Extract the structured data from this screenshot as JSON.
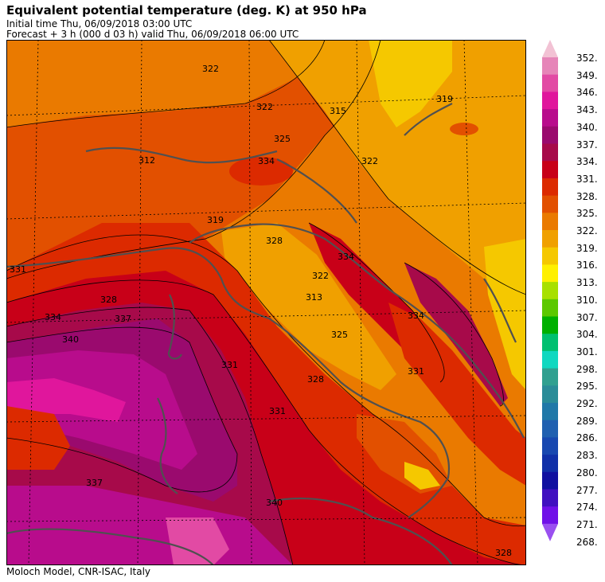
{
  "header": {
    "title": "Equivalent potential temperature (deg. K) at 950 hPa",
    "initial_time": "Initial time  Thu, 06/09/2018  03:00 UTC",
    "forecast": "Forecast  +   3 h  (000 d 03 h)  valid Thu, 06/09/2018 06:00 UTC"
  },
  "footer": {
    "credit": "Moloch Model, CNR-ISAC, Italy"
  },
  "colorbar": {
    "ticks": [
      "352.",
      "349.",
      "346.",
      "343.",
      "340.",
      "337.",
      "334.",
      "331.",
      "328.",
      "325.",
      "322.",
      "319.",
      "316.",
      "313.",
      "310.",
      "307.",
      "304.",
      "301.",
      "298.",
      "295.",
      "292.",
      "289.",
      "286.",
      "283.",
      "280.",
      "277.",
      "274.",
      "271.",
      "268."
    ],
    "colors": [
      "#f2c2d4",
      "#e685b8",
      "#e24aa4",
      "#e0169c",
      "#b80c8c",
      "#9a0a6e",
      "#a70a4a",
      "#c80018",
      "#dc2a00",
      "#e25000",
      "#ea7a00",
      "#f0a000",
      "#f5c800",
      "#fff000",
      "#a8e000",
      "#5cc800",
      "#00b000",
      "#00c070",
      "#10d8c0",
      "#30a090",
      "#2a8c98",
      "#2078a8",
      "#2060b0",
      "#1848b0",
      "#1030a8",
      "#1010a0",
      "#4010c0",
      "#7010e8",
      "#9a50f0"
    ]
  },
  "map_labels": [
    {
      "text": "322"
    },
    {
      "text": "322"
    },
    {
      "text": "315"
    },
    {
      "text": "319"
    },
    {
      "text": "322"
    },
    {
      "text": "312"
    },
    {
      "text": "325"
    },
    {
      "text": "334"
    },
    {
      "text": "319"
    },
    {
      "text": "328"
    },
    {
      "text": "334"
    },
    {
      "text": "322"
    },
    {
      "text": "313"
    },
    {
      "text": "328"
    },
    {
      "text": "334"
    },
    {
      "text": "337"
    },
    {
      "text": "340"
    },
    {
      "text": "334"
    },
    {
      "text": "331"
    },
    {
      "text": "325"
    },
    {
      "text": "328"
    },
    {
      "text": "331"
    },
    {
      "text": "340"
    },
    {
      "text": "337"
    },
    {
      "text": "331"
    },
    {
      "text": "328"
    },
    {
      "text": "331"
    }
  ]
}
